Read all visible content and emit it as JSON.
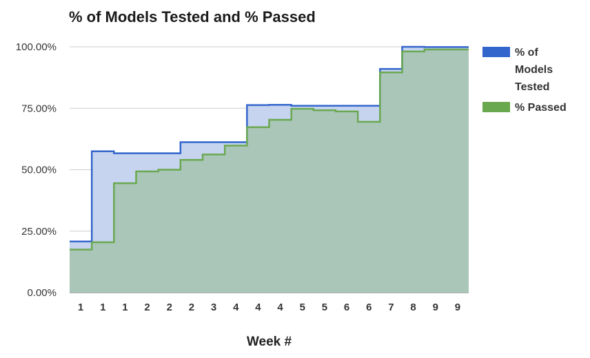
{
  "chart_data": {
    "type": "area",
    "step": true,
    "title": "% of Models Tested and % Passed",
    "xlabel": "Week #",
    "ylabel": "",
    "ylim": [
      0,
      100
    ],
    "yticks": [
      "0.00%",
      "25.00%",
      "50.00%",
      "75.00%",
      "100.00%"
    ],
    "categories": [
      "1",
      "1",
      "1",
      "2",
      "2",
      "2",
      "3",
      "4",
      "4",
      "4",
      "5",
      "5",
      "6",
      "6",
      "7",
      "8",
      "9",
      "9"
    ],
    "series": [
      {
        "name": "% of Models Tested",
        "color": "#3366cc",
        "fill": "#c6d4ef",
        "values": [
          20.8,
          57.5,
          56.7,
          56.7,
          56.7,
          61.2,
          61.2,
          61.2,
          76.3,
          76.4,
          76.0,
          76.0,
          76.0,
          76.0,
          91.0,
          100.0,
          99.9,
          99.9
        ]
      },
      {
        "name": "% Passed",
        "color": "#6aa84f",
        "fill": "#a9c6b9",
        "values": [
          17.5,
          20.5,
          44.5,
          49.3,
          50.0,
          54.0,
          56.2,
          59.8,
          67.3,
          70.3,
          74.8,
          74.2,
          73.7,
          69.5,
          89.6,
          98.1,
          98.9,
          98.9
        ]
      }
    ],
    "grid": true,
    "legend_position": "right"
  }
}
